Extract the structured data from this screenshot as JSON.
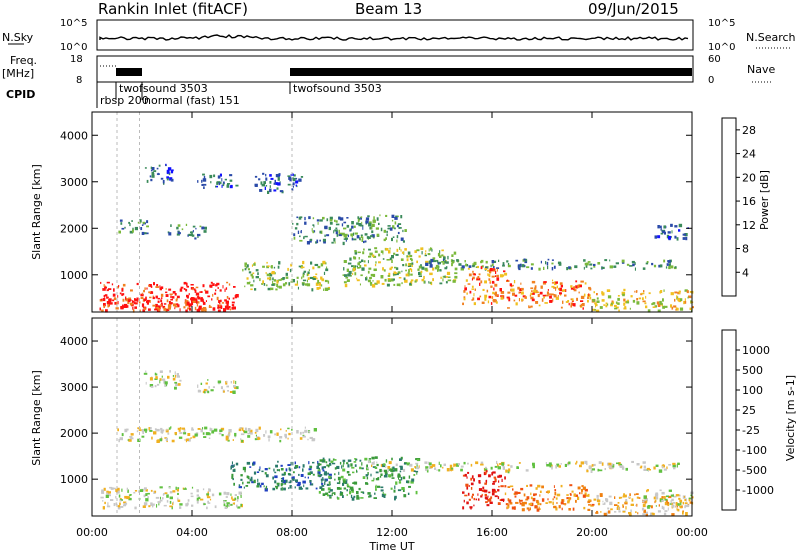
{
  "header": {
    "station": "Rankin Inlet (fitACF)",
    "beam": "Beam 13",
    "date": "09/Jun/2015"
  },
  "top_panels": {
    "noise": {
      "left_label": "N.Sky",
      "right_label": "N.Search",
      "left_ticks": [
        "10^5",
        "10^0"
      ],
      "right_ticks": [
        "10^5",
        "10^0"
      ]
    },
    "freq": {
      "left_label": "Freq.",
      "left_unit": "[MHz]",
      "left_ticks": [
        "18",
        "8"
      ],
      "right_label": "Nave",
      "right_ticks": [
        "60",
        "0"
      ]
    },
    "cpid": {
      "label": "CPID",
      "programs": [
        {
          "name": "rbsp 200",
          "start_hour": 0.15
        },
        {
          "name": "normal (fast) 151",
          "start_hour": 1.5
        },
        {
          "name": "twofsound 3503",
          "start_hour": 1.0
        },
        {
          "name": "twofsound 3503",
          "start_hour": 8.0
        }
      ]
    }
  },
  "chart_data": [
    {
      "type": "heatmap",
      "name": "Power",
      "colorbar_label": "Power [dB]",
      "colorbar_ticks": [
        "4",
        "8",
        "12",
        "16",
        "20",
        "24",
        "28"
      ],
      "colorbar_colors": [
        "#1010ff",
        "#2a4aa8",
        "#3a8a5a",
        "#7ab83a",
        "#f0c020",
        "#f08020",
        "#ff1010"
      ],
      "ylabel": "Slant Range [km]",
      "y_ticks": [
        "1000",
        "2000",
        "3000",
        "4000"
      ],
      "ylim": [
        200,
        4500
      ],
      "xlim_hours": [
        0,
        24
      ],
      "regions": [
        {
          "t0": 0.3,
          "t1": 5.8,
          "r0": 250,
          "r1": 850,
          "level": 6
        },
        {
          "t0": 0.5,
          "t1": 4.5,
          "r0": 250,
          "r1": 550,
          "level": 6
        },
        {
          "t0": 2.0,
          "t1": 3.2,
          "r0": 3000,
          "r1": 3400,
          "level": 1
        },
        {
          "t0": 4.2,
          "t1": 5.8,
          "r0": 2900,
          "r1": 3200,
          "level": 1
        },
        {
          "t0": 6.5,
          "t1": 8.5,
          "r0": 2800,
          "r1": 3200,
          "level": 1
        },
        {
          "t0": 1.0,
          "t1": 2.2,
          "r0": 1900,
          "r1": 2200,
          "level": 2
        },
        {
          "t0": 3.0,
          "t1": 4.5,
          "r0": 1800,
          "r1": 2100,
          "level": 2
        },
        {
          "t0": 6.0,
          "t1": 9.5,
          "r0": 700,
          "r1": 1300,
          "level": 3
        },
        {
          "t0": 8.0,
          "t1": 12.5,
          "r0": 1700,
          "r1": 2300,
          "level": 2
        },
        {
          "t0": 10.0,
          "t1": 14.5,
          "r0": 800,
          "r1": 1600,
          "level": 3
        },
        {
          "t0": 13.0,
          "t1": 23.5,
          "r0": 1150,
          "r1": 1350,
          "level": 2
        },
        {
          "t0": 14.8,
          "t1": 16.5,
          "r0": 400,
          "r1": 1200,
          "level": 5
        },
        {
          "t0": 16.5,
          "t1": 20.0,
          "r0": 300,
          "r1": 900,
          "level": 5
        },
        {
          "t0": 20.0,
          "t1": 24.0,
          "r0": 250,
          "r1": 700,
          "level": 4
        },
        {
          "t0": 22.5,
          "t1": 24.0,
          "r0": 1800,
          "r1": 2100,
          "level": 1
        }
      ]
    },
    {
      "type": "heatmap",
      "name": "Velocity",
      "colorbar_label": "Velocity [m s-1]",
      "colorbar_ticks": [
        "1000",
        "500",
        "100",
        "25",
        "-25",
        "-100",
        "-500",
        "-1000"
      ],
      "colorbar_colors": [
        "#2040c0",
        "#2a7a6a",
        "#3a9a3a",
        "#60c040",
        "#c8c8c8",
        "#f0b020",
        "#f08010",
        "#f05010",
        "#e01010"
      ],
      "ylabel": "Slant Range [km]",
      "y_ticks": [
        "1000",
        "2000",
        "3000",
        "4000"
      ],
      "ylim": [
        200,
        4500
      ],
      "xlim_hours": [
        0,
        24
      ],
      "regions": [
        {
          "t0": 0.3,
          "t1": 6.0,
          "r0": 400,
          "r1": 850,
          "level": 4
        },
        {
          "t0": 2.0,
          "t1": 3.5,
          "r0": 3000,
          "r1": 3400,
          "level": 4
        },
        {
          "t0": 4.2,
          "t1": 5.8,
          "r0": 2900,
          "r1": 3200,
          "level": 4
        },
        {
          "t0": 1.0,
          "t1": 9.0,
          "r0": 1850,
          "r1": 2150,
          "level": 4
        },
        {
          "t0": 5.5,
          "t1": 9.5,
          "r0": 800,
          "r1": 1400,
          "level": 1
        },
        {
          "t0": 9.0,
          "t1": 13.0,
          "r0": 600,
          "r1": 1500,
          "level": 2
        },
        {
          "t0": 11.0,
          "t1": 23.5,
          "r0": 1200,
          "r1": 1400,
          "level": 4
        },
        {
          "t0": 14.8,
          "t1": 16.5,
          "r0": 400,
          "r1": 1200,
          "level": 8
        },
        {
          "t0": 16.5,
          "t1": 20.0,
          "r0": 350,
          "r1": 900,
          "level": 6
        },
        {
          "t0": 20.0,
          "t1": 24.0,
          "r0": 250,
          "r1": 700,
          "level": 5
        },
        {
          "t0": 22.0,
          "t1": 24.0,
          "r0": 400,
          "r1": 800,
          "level": 4
        }
      ]
    }
  ],
  "x_axis": {
    "label": "Time UT",
    "ticks": [
      "00:00",
      "04:00",
      "08:00",
      "12:00",
      "16:00",
      "20:00",
      "00:00"
    ]
  }
}
